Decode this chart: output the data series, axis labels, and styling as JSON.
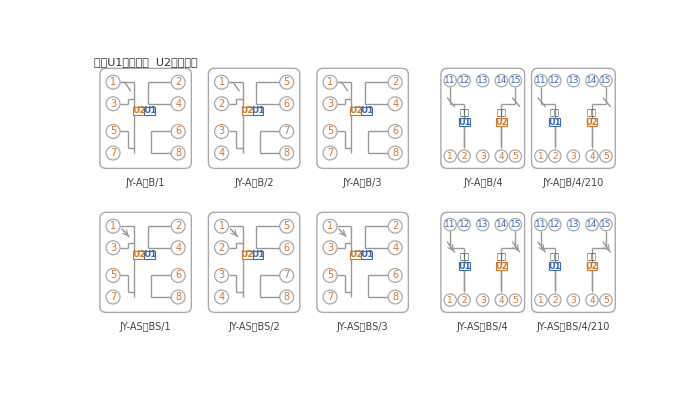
{
  "title_note": "注：U1辅助电源  U2整定电压",
  "bg_color": "#ffffff",
  "box_ec": "#aaaaaa",
  "line_color": "#999999",
  "num_color_orange": "#d4782a",
  "num_color_blue": "#3a6db5",
  "u1_color": "#3a6db5",
  "u2_color": "#d4782a",
  "label_color": "#444444",
  "diagrams": [
    {
      "col": 0,
      "row": 0,
      "type": "B1",
      "label": "JY-A，B/1",
      "arrow": false
    },
    {
      "col": 1,
      "row": 0,
      "type": "B2",
      "label": "JY-A，B/2",
      "arrow": false
    },
    {
      "col": 2,
      "row": 0,
      "type": "B3",
      "label": "JY-A，B/3",
      "arrow": false
    },
    {
      "col": 3,
      "row": 0,
      "type": "B4",
      "label": "JY-A，B/4",
      "arrow": false
    },
    {
      "col": 4,
      "row": 0,
      "type": "B4",
      "label": "JY-A，B/4/210",
      "arrow": false
    },
    {
      "col": 0,
      "row": 1,
      "type": "B1",
      "label": "JY-AS，BS/1",
      "arrow": true
    },
    {
      "col": 1,
      "row": 1,
      "type": "B2",
      "label": "JY-AS，BS/2",
      "arrow": true
    },
    {
      "col": 2,
      "row": 1,
      "type": "B3",
      "label": "JY-AS，BS/3",
      "arrow": true
    },
    {
      "col": 3,
      "row": 1,
      "type": "B4",
      "label": "JY-AS，BS/4",
      "arrow": true
    },
    {
      "col": 4,
      "row": 1,
      "type": "B4",
      "label": "JY-AS，BS/4/210",
      "arrow": true
    }
  ]
}
